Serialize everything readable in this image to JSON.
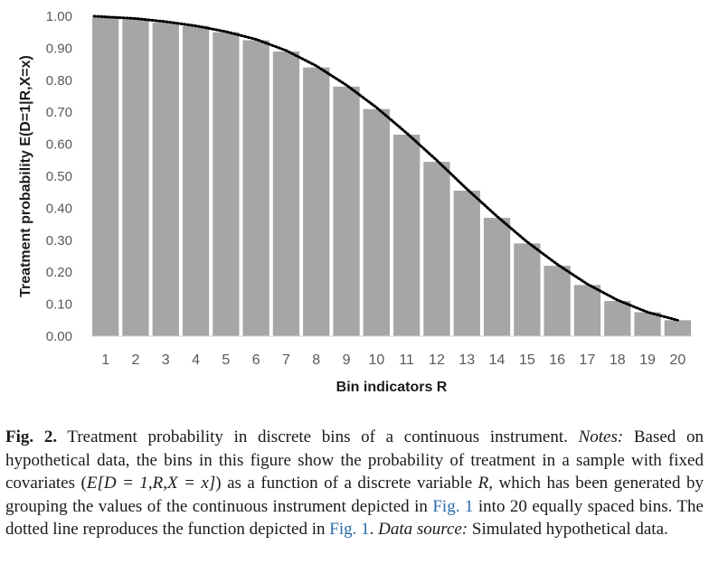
{
  "chart_data": {
    "type": "bar",
    "categories": [
      "1",
      "2",
      "3",
      "4",
      "5",
      "6",
      "7",
      "8",
      "9",
      "10",
      "11",
      "12",
      "13",
      "14",
      "15",
      "16",
      "17",
      "18",
      "19",
      "20"
    ],
    "values": [
      0.995,
      0.99,
      0.98,
      0.97,
      0.95,
      0.925,
      0.89,
      0.84,
      0.78,
      0.71,
      0.63,
      0.545,
      0.455,
      0.37,
      0.29,
      0.22,
      0.16,
      0.11,
      0.075,
      0.05
    ],
    "line_values": [
      1.0,
      0.993,
      0.983,
      0.97,
      0.952,
      0.928,
      0.893,
      0.845,
      0.785,
      0.715,
      0.635,
      0.55,
      0.46,
      0.375,
      0.295,
      0.225,
      0.163,
      0.113,
      0.075,
      0.05
    ],
    "ylim": [
      0,
      1.0
    ],
    "yticks": [
      "0.00",
      "0.10",
      "0.20",
      "0.30",
      "0.40",
      "0.50",
      "0.60",
      "0.70",
      "0.80",
      "0.90",
      "1.00"
    ],
    "xlabel": "Bin indicators R",
    "ylabel": "Treatment probability  E(D=1|R,X=x)",
    "grid": false,
    "bar_color": "#a6a6a6",
    "line_color": "#000000",
    "line_style": "dotted"
  },
  "caption": {
    "label": "Fig. 2.",
    "title": "Treatment probability in discrete bins of a continuous instrument.",
    "notes_label": "Notes:",
    "text_1": "Based on hypothetical data, the bins in this figure show the probability of treatment in a sample with fixed covariates (",
    "formula": "E[D = 1,R,X = x]",
    "text_2": ") as a function of a discrete variable ",
    "var_r": "R",
    "text_3": ", which has been generated by grouping the values of the continuous instrument depicted in ",
    "ref_1": "Fig. 1",
    "text_4": " into 20 equally spaced bins. The dotted line reproduces the function depicted in ",
    "ref_2": "Fig. 1",
    "text_5": ".",
    "source_label": "Data source:",
    "source_text": "Simulated hypothetical data."
  },
  "colors": {
    "link": "#2a6aa8",
    "text": "#1a1a1a",
    "tick": "#595959"
  }
}
